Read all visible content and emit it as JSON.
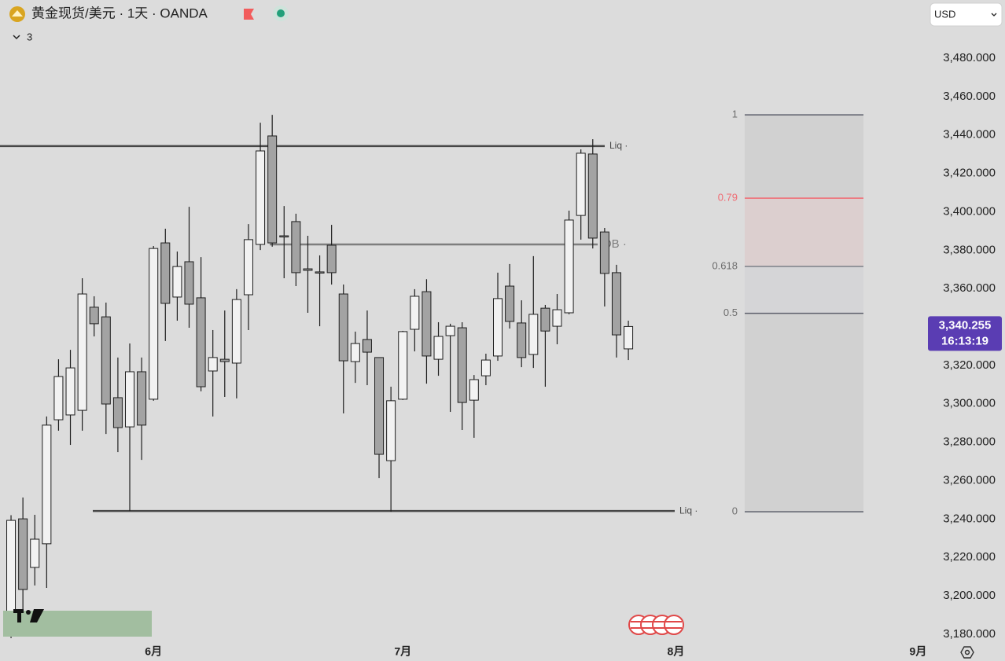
{
  "chart_data": {
    "type": "candlestick",
    "title": "黄金现货/美元 · 1天 · OANDA",
    "indicators": 3,
    "currency": "USD",
    "up_color": "#f2f2f2",
    "down_color": "#a3a3a3",
    "open": [
      3180.0,
      3240.1,
      3214.8,
      3227.1,
      3291.7,
      3294.2,
      3296.6,
      3350.3,
      3345.3,
      3303.2,
      3288.0,
      3316.7,
      3302.4,
      3383.8,
      3355.6,
      3374.0,
      3355.2,
      3317.1,
      3323.2,
      3321.2,
      3356.8,
      3383.0,
      3439.5,
      3387.5,
      3394.9,
      3370.3,
      3368.7,
      3382.6,
      3357.2,
      3322.0,
      3333.5,
      3324.1,
      3270.4,
      3302.4,
      3338.8,
      3358.4,
      3323.2,
      3335.5,
      3339.6,
      3301.9,
      3314.6,
      3324.9,
      3361.3,
      3342.1,
      3325.7,
      3349.8,
      3340.4,
      3347.4,
      3398.1,
      3430.1,
      3389.5,
      3368.3,
      3328.6
    ],
    "high": [
      3242.0,
      3251.2,
      3242.2,
      3293.4,
      3323.2,
      3328.1,
      3365.4,
      3356.0,
      3352.7,
      3324.1,
      3331.4,
      3324.1,
      3382.2,
      3391.2,
      3379.3,
      3402.6,
      3376.4,
      3338.4,
      3348.6,
      3359.7,
      3393.6,
      3446.4,
      3450.5,
      3403.0,
      3399.0,
      3387.5,
      3377.3,
      3393.2,
      3362.1,
      3337.6,
      3348.6,
      3324.1,
      3308.9,
      3338.0,
      3359.7,
      3364.9,
      3342.5,
      3341.7,
      3342.5,
      3315.0,
      3326.1,
      3368.3,
      3372.8,
      3353.9,
      3376.9,
      3351.5,
      3357.2,
      3400.6,
      3432.5,
      3437.8,
      3391.6,
      3372.4,
      3343.3
    ],
    "low": [
      3178.0,
      3184.9,
      3205.4,
      3204.1,
      3286.0,
      3278.6,
      3286.0,
      3335.1,
      3284.3,
      3274.9,
      3244.2,
      3270.8,
      3301.6,
      3332.7,
      3343.3,
      3339.6,
      3306.5,
      3293.4,
      3303.6,
      3302.8,
      3338.4,
      3380.1,
      3381.8,
      3365.4,
      3361.3,
      3347.4,
      3340.4,
      3362.1,
      3295.0,
      3310.9,
      3309.7,
      3261.4,
      3243.8,
      3302.0,
      3327.3,
      3310.5,
      3314.6,
      3295.8,
      3286.4,
      3282.3,
      3309.7,
      3322.4,
      3339.2,
      3319.1,
      3318.7,
      3308.9,
      3331.0,
      3346.6,
      3385.5,
      3380.9,
      3350.7,
      3324.1,
      3322.8
    ],
    "close": [
      3239.3,
      3203.3,
      3229.5,
      3288.9,
      3314.2,
      3318.7,
      3357.2,
      3341.7,
      3299.9,
      3287.6,
      3316.7,
      3288.9,
      3380.9,
      3352.3,
      3371.5,
      3351.9,
      3308.9,
      3324.1,
      3322.0,
      3354.3,
      3385.5,
      3431.7,
      3383.8,
      3387.1,
      3368.3,
      3369.5,
      3368.3,
      3368.3,
      3322.4,
      3331.4,
      3326.9,
      3273.7,
      3301.6,
      3337.6,
      3356.0,
      3324.9,
      3335.1,
      3340.4,
      3300.7,
      3312.6,
      3322.8,
      3354.8,
      3342.9,
      3324.1,
      3346.6,
      3337.9,
      3349.0,
      3395.7,
      3430.5,
      3386.3,
      3367.9,
      3335.9,
      3340.255
    ],
    "xlim": [
      -0.93,
      77.1
    ],
    "xticks": [
      {
        "value": 12,
        "label": "6月"
      },
      {
        "value": 33,
        "label": "7月"
      },
      {
        "value": 56,
        "label": "8月"
      },
      {
        "value": 76.4,
        "label": "9月"
      }
    ],
    "ylim": [
      3176.7,
      3510.3
    ],
    "yticks": [
      {
        "value": 3180,
        "label": "3,180.000"
      },
      {
        "value": 3200,
        "label": "3,200.000"
      },
      {
        "value": 3220,
        "label": "3,220.000"
      },
      {
        "value": 3240,
        "label": "3,240.000"
      },
      {
        "value": 3260,
        "label": "3,260.000"
      },
      {
        "value": 3280,
        "label": "3,280.000"
      },
      {
        "value": 3300,
        "label": "3,300.000"
      },
      {
        "value": 3320,
        "label": "3,320.000"
      },
      {
        "value": 3340,
        "label": "3,340.000"
      },
      {
        "value": 3360,
        "label": "3,360.000"
      },
      {
        "value": 3380,
        "label": "3,380.000"
      },
      {
        "value": 3400,
        "label": "3,400.000"
      },
      {
        "value": 3420,
        "label": "3,420.000"
      },
      {
        "value": 3440,
        "label": "3,440.000"
      },
      {
        "value": 3460,
        "label": "3,460.000"
      },
      {
        "value": 3480,
        "label": "3,480.000"
      }
    ],
    "levels": [
      {
        "label": "Liq ·",
        "value": 3434.2,
        "color": "#474747"
      },
      {
        "label": "Liq ·",
        "value": 3244.2,
        "color": "#474747"
      },
      {
        "label": "OB ·",
        "value": 3383.0,
        "color": "#7e7e7e"
      }
    ],
    "fib": {
      "high": 3450.5,
      "low": 3243.8,
      "levels": [
        {
          "value": 1,
          "color": "#5d606b",
          "fill": "#d1d1d1"
        },
        {
          "value": 0.79,
          "color": "#f06a72",
          "fill": "#dccfcf"
        },
        {
          "value": 0.618,
          "color": "#7d8089",
          "fill": "#d5d5d7"
        },
        {
          "value": 0.5,
          "color": "#5d606b",
          "fill": "#d1d1d1"
        },
        {
          "value": 0,
          "color": "#5d606b"
        }
      ]
    },
    "last_price": {
      "value": 3340.255,
      "label": "3,340.255"
    },
    "countdown": "16:13:19"
  }
}
